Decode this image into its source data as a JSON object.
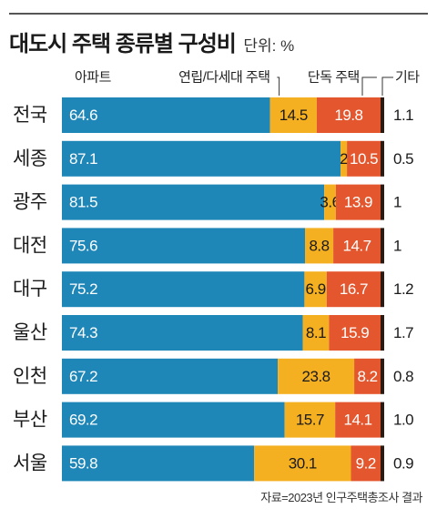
{
  "title": "대도시 주택 종류별 구성비",
  "unit": "단위: %",
  "source": "자료=2023년 인구주택총조사 결과",
  "colors": {
    "apartment": "#1f86b8",
    "rowhouse": "#f5b021",
    "detached": "#e4572e",
    "other": "#2a1a12",
    "bar_text_light": "#ffffff",
    "bar_text_dark": "#1a1a1a"
  },
  "chart_data": {
    "type": "bar",
    "orientation": "horizontal",
    "stacked": true,
    "categories": [
      "전국",
      "세종",
      "광주",
      "대전",
      "대구",
      "울산",
      "인천",
      "부산",
      "서울"
    ],
    "series": [
      {
        "name": "아파트",
        "values": [
          64.6,
          87.1,
          81.5,
          75.6,
          75.2,
          74.3,
          67.2,
          69.2,
          59.8
        ]
      },
      {
        "name": "연립/다세대 주택",
        "values": [
          14.5,
          2,
          3.6,
          8.8,
          6.9,
          8.1,
          23.8,
          15.7,
          30.1
        ]
      },
      {
        "name": "단독 주택",
        "values": [
          19.8,
          10.5,
          13.9,
          14.7,
          16.7,
          15.9,
          8.2,
          14.1,
          9.2
        ]
      },
      {
        "name": "기타",
        "values": [
          1.1,
          0.5,
          1,
          1,
          1.2,
          1.7,
          0.8,
          1.0,
          0.9
        ]
      }
    ],
    "value_labels": [
      [
        "64.6",
        "14.5",
        "19.8",
        "1.1"
      ],
      [
        "87.1",
        "2",
        "10.5",
        "0.5"
      ],
      [
        "81.5",
        "3.6",
        "13.9",
        "1"
      ],
      [
        "75.6",
        "8.8",
        "14.7",
        "1"
      ],
      [
        "75.2",
        "6.9",
        "16.7",
        "1.2"
      ],
      [
        "74.3",
        "8.1",
        "15.9",
        "1.7"
      ],
      [
        "67.2",
        "23.8",
        "8.2",
        "0.8"
      ],
      [
        "69.2",
        "15.7",
        "14.1",
        "1.0"
      ],
      [
        "59.8",
        "30.1",
        "9.2",
        "0.9"
      ]
    ],
    "xlim": [
      0,
      100
    ],
    "legend": "top",
    "grid": false
  }
}
